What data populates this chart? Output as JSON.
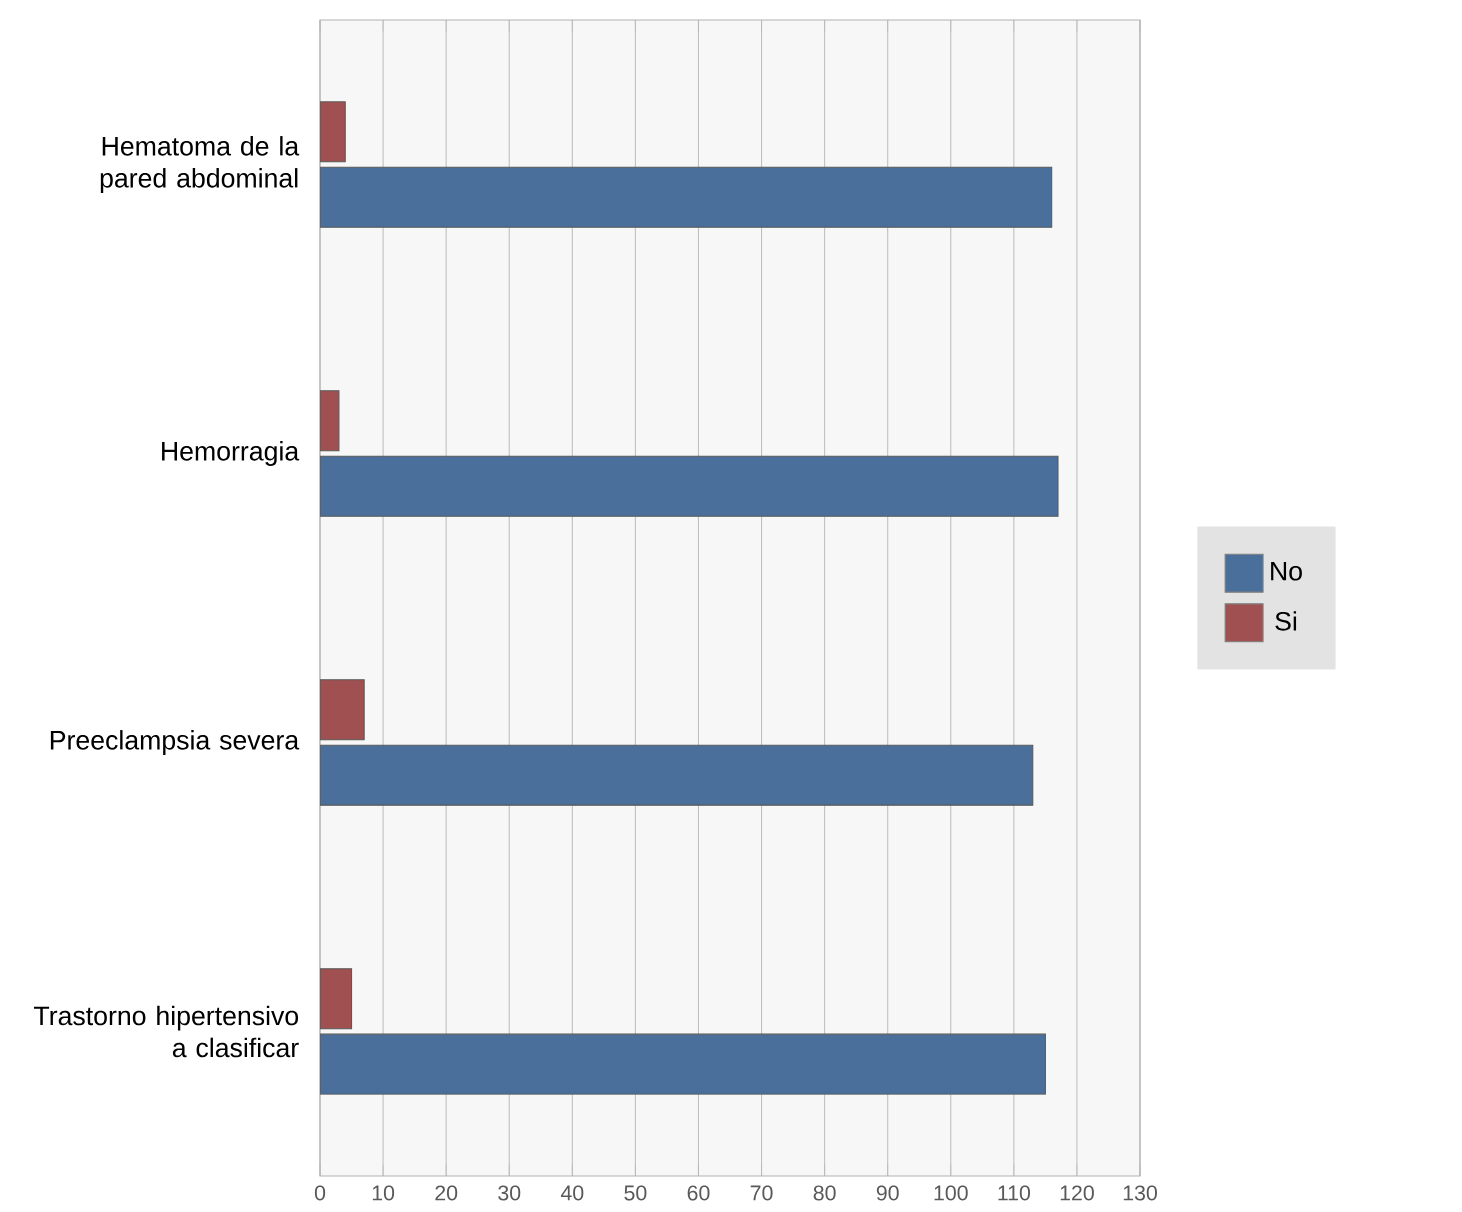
{
  "chart_data": {
    "type": "bar",
    "orientation": "horizontal",
    "categories": [
      "Hematoma de la pared abdominal",
      "Hemorragia",
      "Preeclampsia severa",
      "Trastorno hipertensivo a clasificar"
    ],
    "series": [
      {
        "name": "No",
        "color": "#4a6f9a",
        "values": [
          116,
          117,
          113,
          115
        ]
      },
      {
        "name": "Si",
        "color": "#a05050",
        "values": [
          4,
          3,
          7,
          5
        ]
      }
    ],
    "xlim": [
      0,
      130
    ],
    "xticks": [
      0,
      10,
      20,
      30,
      40,
      50,
      60,
      70,
      80,
      90,
      100,
      110,
      120,
      130
    ],
    "grid": "x",
    "legend": "right"
  }
}
